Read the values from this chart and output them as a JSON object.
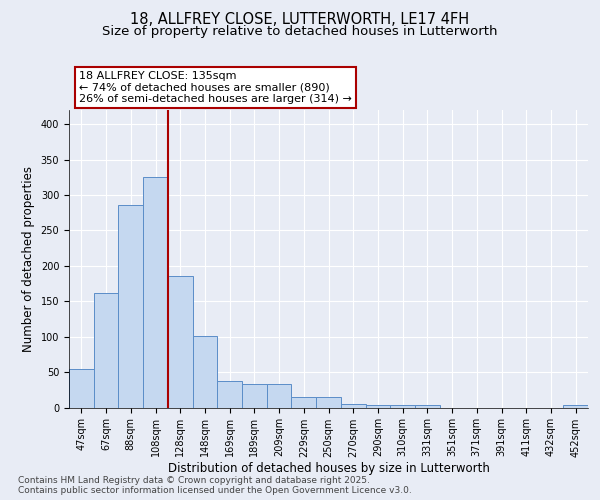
{
  "title1": "18, ALLFREY CLOSE, LUTTERWORTH, LE17 4FH",
  "title2": "Size of property relative to detached houses in Lutterworth",
  "xlabel": "Distribution of detached houses by size in Lutterworth",
  "ylabel": "Number of detached properties",
  "bar_values": [
    55,
    162,
    286,
    325,
    185,
    101,
    38,
    33,
    33,
    15,
    15,
    5,
    3,
    4,
    4,
    0,
    0,
    0,
    0,
    0,
    3
  ],
  "bar_labels": [
    "47sqm",
    "67sqm",
    "88sqm",
    "108sqm",
    "128sqm",
    "148sqm",
    "169sqm",
    "189sqm",
    "209sqm",
    "229sqm",
    "250sqm",
    "270sqm",
    "290sqm",
    "310sqm",
    "331sqm",
    "351sqm",
    "371sqm",
    "391sqm",
    "411sqm",
    "432sqm",
    "452sqm"
  ],
  "bar_color": "#c5d8f0",
  "bar_edge_color": "#5b8dc8",
  "vline_x_idx": 4,
  "vline_color": "#aa0000",
  "annotation_line1": "18 ALLFREY CLOSE: 135sqm",
  "annotation_line2": "← 74% of detached houses are smaller (890)",
  "annotation_line3": "26% of semi-detached houses are larger (314) →",
  "annotation_box_color": "#aa0000",
  "ylim": [
    0,
    420
  ],
  "yticks": [
    0,
    50,
    100,
    150,
    200,
    250,
    300,
    350,
    400
  ],
  "bg_color": "#e8ecf5",
  "plot_bg_color": "#e8ecf5",
  "grid_color": "#ffffff",
  "footer_text": "Contains HM Land Registry data © Crown copyright and database right 2025.\nContains public sector information licensed under the Open Government Licence v3.0.",
  "title_fontsize": 10.5,
  "subtitle_fontsize": 9.5,
  "tick_fontsize": 7,
  "ylabel_fontsize": 8.5,
  "xlabel_fontsize": 8.5,
  "ann_fontsize": 8,
  "footer_fontsize": 6.5
}
